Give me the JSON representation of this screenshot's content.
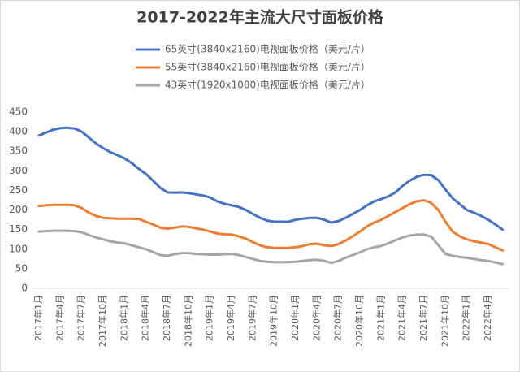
{
  "chart_data": {
    "type": "line",
    "title": "2017-2022年主流大尺寸面板价格",
    "categories": [
      "2017年1月",
      null,
      null,
      "2017年4月",
      null,
      null,
      "2017年7月",
      null,
      null,
      "2017年10月",
      null,
      null,
      "2018年1月",
      null,
      null,
      "2018年4月",
      null,
      null,
      "2018年7月",
      null,
      null,
      "2018年10月",
      null,
      null,
      "2019年1月",
      null,
      null,
      "2019年4月",
      null,
      null,
      "2019年7月",
      null,
      null,
      "2019年10月",
      null,
      null,
      "2020年1月",
      null,
      null,
      "2020年4月",
      null,
      null,
      "2020年7月",
      null,
      null,
      "2020年10月",
      null,
      null,
      "2021年1月",
      null,
      null,
      "2021年4月",
      null,
      null,
      "2021年7月",
      null,
      null,
      "2021年10月",
      null,
      null,
      "2022年1月",
      null,
      null,
      "2022年4月",
      null,
      null
    ],
    "series": [
      {
        "name": "65英寸(3840x2160)电视面板价格（美元/片）",
        "color": "#4472c4",
        "values": [
          390,
          398,
          405,
          409,
          410,
          408,
          400,
          385,
          370,
          358,
          348,
          340,
          332,
          320,
          305,
          292,
          275,
          257,
          245,
          244,
          245,
          243,
          240,
          237,
          232,
          222,
          216,
          212,
          208,
          200,
          190,
          180,
          173,
          170,
          170,
          170,
          175,
          178,
          180,
          180,
          175,
          168,
          172,
          180,
          190,
          200,
          212,
          222,
          228,
          235,
          245,
          262,
          275,
          285,
          290,
          289,
          276,
          252,
          230,
          215,
          200,
          193,
          185,
          175,
          163,
          150
        ]
      },
      {
        "name": "55英寸(3840x2160)电视面板价格（美元/片）",
        "color": "#ed7d31",
        "values": [
          210,
          212,
          213,
          213,
          213,
          212,
          205,
          193,
          185,
          180,
          179,
          178,
          178,
          178,
          177,
          170,
          163,
          155,
          152,
          155,
          158,
          157,
          153,
          150,
          145,
          140,
          138,
          137,
          133,
          127,
          118,
          110,
          105,
          103,
          103,
          103,
          105,
          108,
          113,
          114,
          110,
          108,
          113,
          122,
          133,
          145,
          158,
          168,
          175,
          185,
          195,
          205,
          215,
          222,
          225,
          218,
          200,
          170,
          145,
          133,
          125,
          120,
          117,
          113,
          105,
          97
        ]
      },
      {
        "name": "43英寸(1920x1080)电视面板价格（美元/片）",
        "color": "#a5a5a5",
        "values": [
          145,
          146,
          147,
          147,
          147,
          146,
          143,
          136,
          130,
          125,
          120,
          117,
          115,
          110,
          105,
          100,
          93,
          85,
          83,
          87,
          90,
          90,
          88,
          87,
          86,
          86,
          87,
          88,
          85,
          80,
          75,
          70,
          68,
          67,
          67,
          67,
          68,
          70,
          72,
          73,
          70,
          65,
          70,
          78,
          85,
          92,
          100,
          105,
          108,
          115,
          123,
          130,
          135,
          137,
          137,
          132,
          110,
          88,
          83,
          80,
          78,
          75,
          72,
          70,
          66,
          62
        ]
      }
    ],
    "ylim": [
      0,
      450
    ],
    "yticks": [
      0,
      50,
      100,
      150,
      200,
      250,
      300,
      350,
      400,
      450
    ],
    "grid": false
  }
}
